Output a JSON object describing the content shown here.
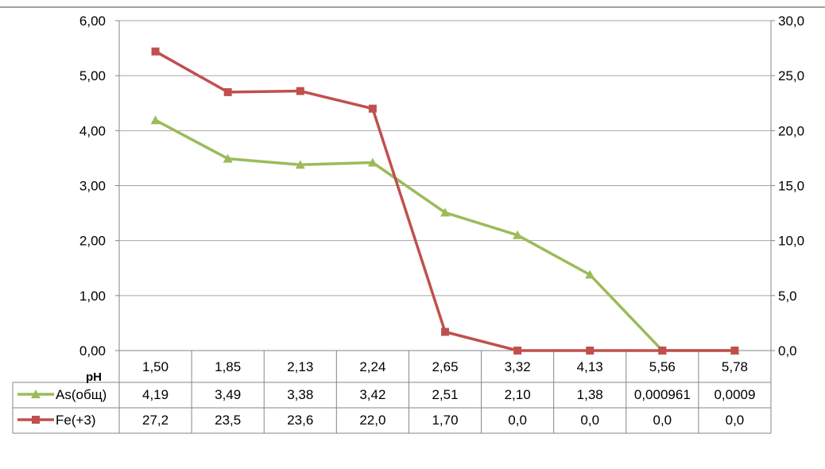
{
  "chart_data": {
    "type": "line",
    "title": "",
    "xlabel": "pH",
    "categories": [
      "1,50",
      "1,85",
      "2,13",
      "2,24",
      "2,65",
      "3,32",
      "4,13",
      "5,56",
      "5,78"
    ],
    "y_left": {
      "lim": [
        0,
        6
      ],
      "ticks": [
        "0,00",
        "1,00",
        "2,00",
        "3,00",
        "4,00",
        "5,00",
        "6,00"
      ],
      "tick_values": [
        0,
        1,
        2,
        3,
        4,
        5,
        6
      ]
    },
    "y_right": {
      "lim": [
        0,
        30
      ],
      "ticks": [
        "0,0",
        "5,0",
        "10,0",
        "15,0",
        "20,0",
        "25,0",
        "30,0"
      ],
      "tick_values": [
        0,
        5,
        10,
        15,
        20,
        25,
        30
      ]
    },
    "grid": true,
    "legend": "data-table",
    "series": [
      {
        "name": "As(общ)",
        "axis": "left",
        "color": "#9bbb59",
        "marker": "triangle",
        "values": [
          4.19,
          3.49,
          3.38,
          3.42,
          2.51,
          2.1,
          1.38,
          0.000961,
          0.0009
        ],
        "labels": [
          "4,19",
          "3,49",
          "3,38",
          "3,42",
          "2,51",
          "2,10",
          "1,38",
          "0,000961",
          "0,0009"
        ]
      },
      {
        "name": "Fe(+3)",
        "axis": "right",
        "color": "#c0504d",
        "marker": "square",
        "values": [
          27.2,
          23.5,
          23.6,
          22.0,
          1.7,
          0.0,
          0.0,
          0.0,
          0.0
        ],
        "labels": [
          "27,2",
          "23,5",
          "23,6",
          "22,0",
          "1,70",
          "0,0",
          "0,0",
          "0,0",
          "0,0"
        ]
      }
    ]
  }
}
